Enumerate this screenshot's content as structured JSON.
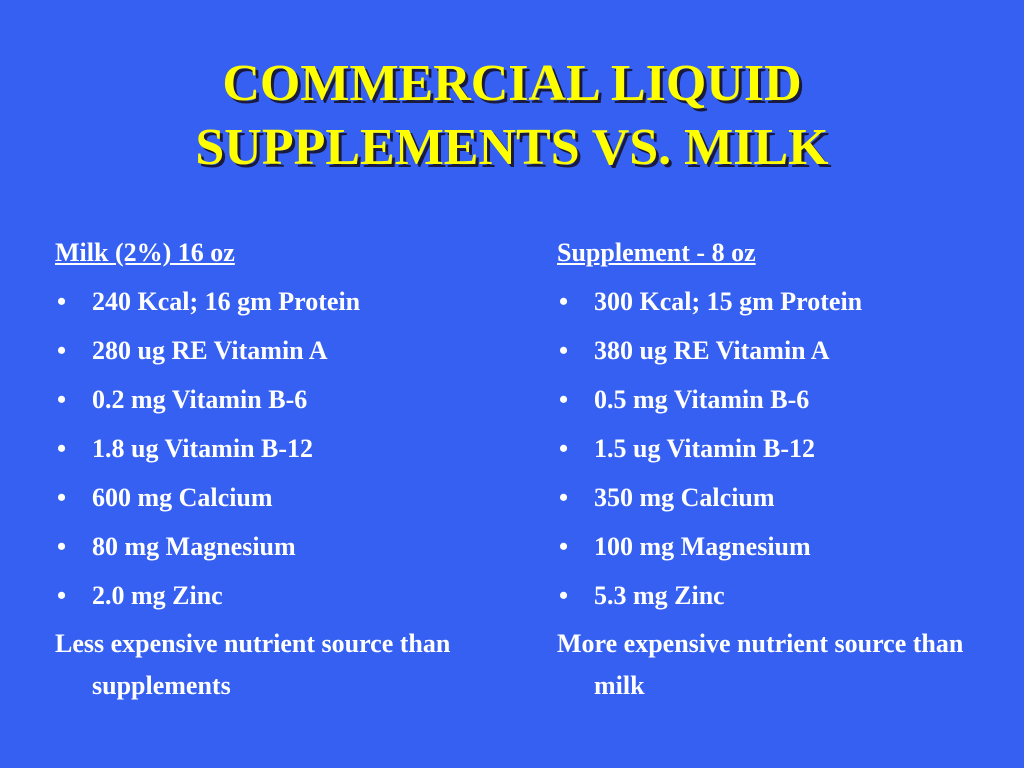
{
  "title": {
    "lines": [
      "COMMERCIAL LIQUID",
      "SUPPLEMENTS VS. MILK"
    ]
  },
  "columns": [
    {
      "heading": "Milk (2%) 16 oz",
      "items": [
        "240 Kcal; 16 gm Protein",
        "280 ug RE Vitamin A",
        "0.2 mg Vitamin B-6",
        "1.8 ug Vitamin B-12",
        "600 mg Calcium",
        "80 mg Magnesium",
        "2.0 mg Zinc"
      ],
      "note": "Less expensive nutrient source than supplements"
    },
    {
      "heading": "Supplement - 8 oz",
      "items": [
        "300 Kcal; 15 gm Protein",
        "380 ug RE Vitamin A",
        "0.5 mg Vitamin B-6",
        "1.5 ug Vitamin B-12",
        "350 mg Calcium",
        "100 mg Magnesium",
        "5.3 mg Zinc"
      ],
      "note": "More expensive nutrient source than milk"
    }
  ]
}
